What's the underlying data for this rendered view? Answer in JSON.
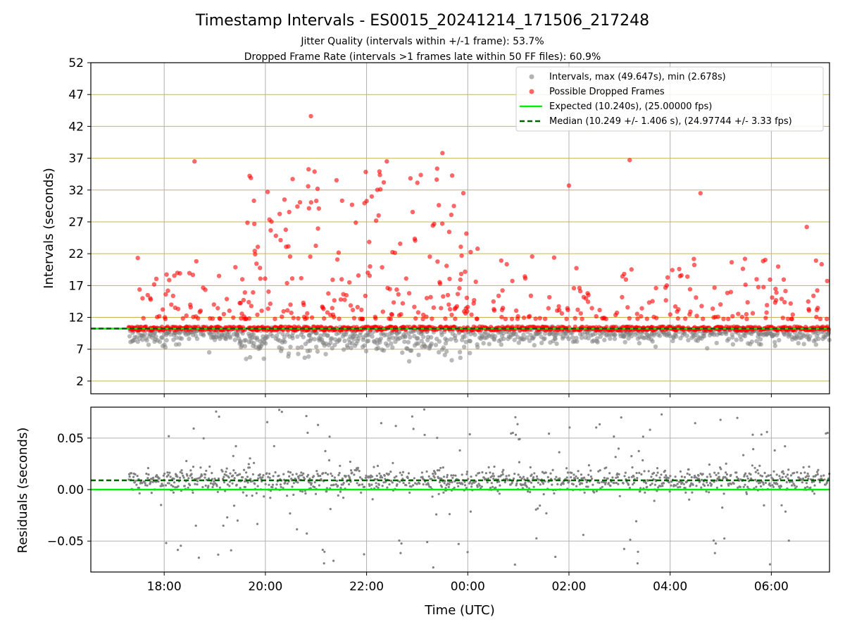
{
  "chart_data": [
    {
      "type": "scatter",
      "title": "Timestamp Intervals - ES0015_20241214_171506_217248",
      "subtitle_lines": [
        "Jitter Quality (intervals within +/-1 frame): 53.7%",
        "Dropped Frame Rate (intervals >1 frames late within 50 FF files): 60.9%"
      ],
      "xlabel": "",
      "ylabel": "Intervals (seconds)",
      "ylim": [
        0,
        52
      ],
      "yticks": [
        2,
        7,
        12,
        17,
        22,
        27,
        32,
        37,
        42,
        47,
        52
      ],
      "x_hours_range": [
        16.55,
        31.15
      ],
      "xticks": [
        "18:00",
        "20:00",
        "22:00",
        "00:00",
        "02:00",
        "04:00",
        "06:00"
      ],
      "grid": "vertical gray lines at hour ticks, horizontal tan lines at y ticks",
      "legend_placement": "top-right",
      "legend": [
        "Intervals, max (49.647s), min (2.678s)",
        "Possible Dropped Frames",
        "Expected (10.240s), (25.00000 fps)",
        "Median (10.249 +/- 1.406 s), (24.97744 +/- 3.33 fps)"
      ],
      "expected_interval": 10.24,
      "median_interval": 10.249,
      "series_colors": {
        "intervals": "#808080",
        "dropped": "#ff0000",
        "expected": "#00ee00",
        "median": "#006400",
        "grid_h": "#c8b45a",
        "grid_v": "#b0b0b0"
      },
      "dropped_highlights": [
        {
          "t": 18.6,
          "y": 36.5
        },
        {
          "t": 20.9,
          "y": 43.6
        },
        {
          "t": 22.4,
          "y": 36.5
        },
        {
          "t": 23.5,
          "y": 37.8
        },
        {
          "t": 26.0,
          "y": 32.7
        },
        {
          "t": 27.2,
          "y": 36.7
        },
        {
          "t": 28.6,
          "y": 31.5
        },
        {
          "t": 30.7,
          "y": 26.2
        }
      ]
    },
    {
      "type": "scatter",
      "xlabel": "Time (UTC)",
      "ylabel": "Residuals (seconds)",
      "ylim": [
        -0.08,
        0.08
      ],
      "yticks": [
        -0.05,
        0.0,
        0.05
      ],
      "ytick_labels": [
        "−0.05",
        "0.00",
        "0.05"
      ],
      "expected_residual": 0.0,
      "median_residual": 0.009
    }
  ]
}
